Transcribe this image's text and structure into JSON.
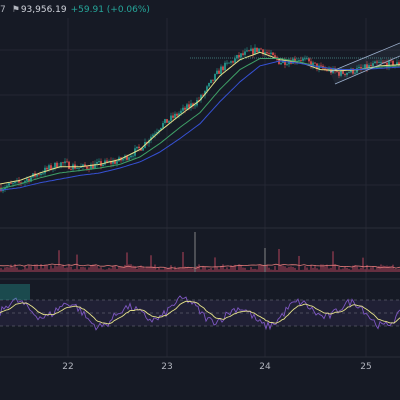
{
  "legend": {
    "cut_text": "7",
    "flag_icon": "flag-icon",
    "price": "93,956.19",
    "change": "+59.91 (+0.06%)"
  },
  "chart_data": [
    {
      "type": "line",
      "panel": "price",
      "x": [
        0,
        5,
        10,
        15,
        20,
        25,
        30,
        35,
        40,
        45,
        50,
        55,
        60,
        65,
        70,
        75,
        80,
        85,
        90,
        95,
        100
      ],
      "series": [
        {
          "color": "#b7b7b7",
          "style": "candles-close",
          "values": [
            50,
            54,
            62,
            70,
            66,
            69,
            72,
            82,
            100,
            111,
            122,
            146,
            157,
            163,
            152,
            155,
            147,
            143,
            146,
            151,
            150
          ]
        },
        {
          "color": "#e5e28a",
          "values": [
            53,
            56,
            62,
            67,
            67,
            69,
            73,
            81,
            96,
            109,
            121,
            141,
            154,
            160,
            154,
            152,
            146,
            145,
            146,
            149,
            150
          ]
        },
        {
          "color": "#3fa167",
          "values": [
            49,
            53,
            58,
            62,
            64,
            66,
            69,
            75,
            86,
            99,
            111,
            130,
            146,
            155,
            155,
            152,
            148,
            146,
            146,
            148,
            149
          ]
        },
        {
          "color": "#3651d4",
          "values": [
            48,
            50,
            54,
            57,
            60,
            62,
            66,
            71,
            79,
            90,
            102,
            120,
            136,
            149,
            153,
            151,
            148,
            146,
            146,
            147,
            148
          ]
        }
      ],
      "grid": true
    },
    {
      "type": "bar",
      "panel": "volume",
      "color": "#b2455a"
    },
    {
      "type": "line",
      "panel": "oscillator",
      "series": [
        {
          "color": "#7e57c2",
          "style": "oscillator"
        },
        {
          "color": "#e5e28a",
          "style": "signal"
        }
      ],
      "band_color": "#7e57c2"
    }
  ],
  "x_axis": {
    "ticks": [
      "22",
      "23",
      "24",
      "25"
    ]
  },
  "colors": {
    "background": "#161a25",
    "grid": "#242733",
    "up": "#26a69a",
    "down": "#ef5350",
    "channel": "#9fb3d1"
  }
}
